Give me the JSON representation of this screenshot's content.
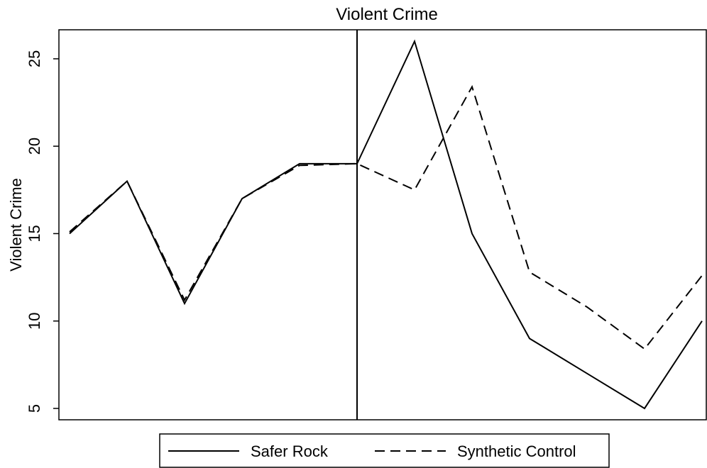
{
  "chart_data": {
    "type": "line",
    "title": "Violent Crime",
    "y_label": "Violent Crime",
    "categories": [
      null,
      null,
      null,
      null,
      null,
      null,
      null,
      null,
      null,
      null,
      null,
      null
    ],
    "series": [
      {
        "name": "Safer Rock",
        "color": "#000000",
        "dash": "solid",
        "values": [
          15,
          18,
          11,
          17,
          19,
          19,
          26,
          15,
          9,
          7,
          5,
          10
        ]
      },
      {
        "name": "Synthetic Control",
        "color": "#000000",
        "dash": "dashed",
        "values": [
          15.1,
          18,
          11.2,
          17,
          18.9,
          19,
          17.5,
          23.4,
          12.8,
          10.8,
          8.4,
          12.6
        ]
      }
    ],
    "ylim": [
      4.35,
      26.66
    ],
    "yticks": [
      5,
      10,
      15,
      20,
      25
    ],
    "grid": false,
    "legend": "bottom"
  }
}
